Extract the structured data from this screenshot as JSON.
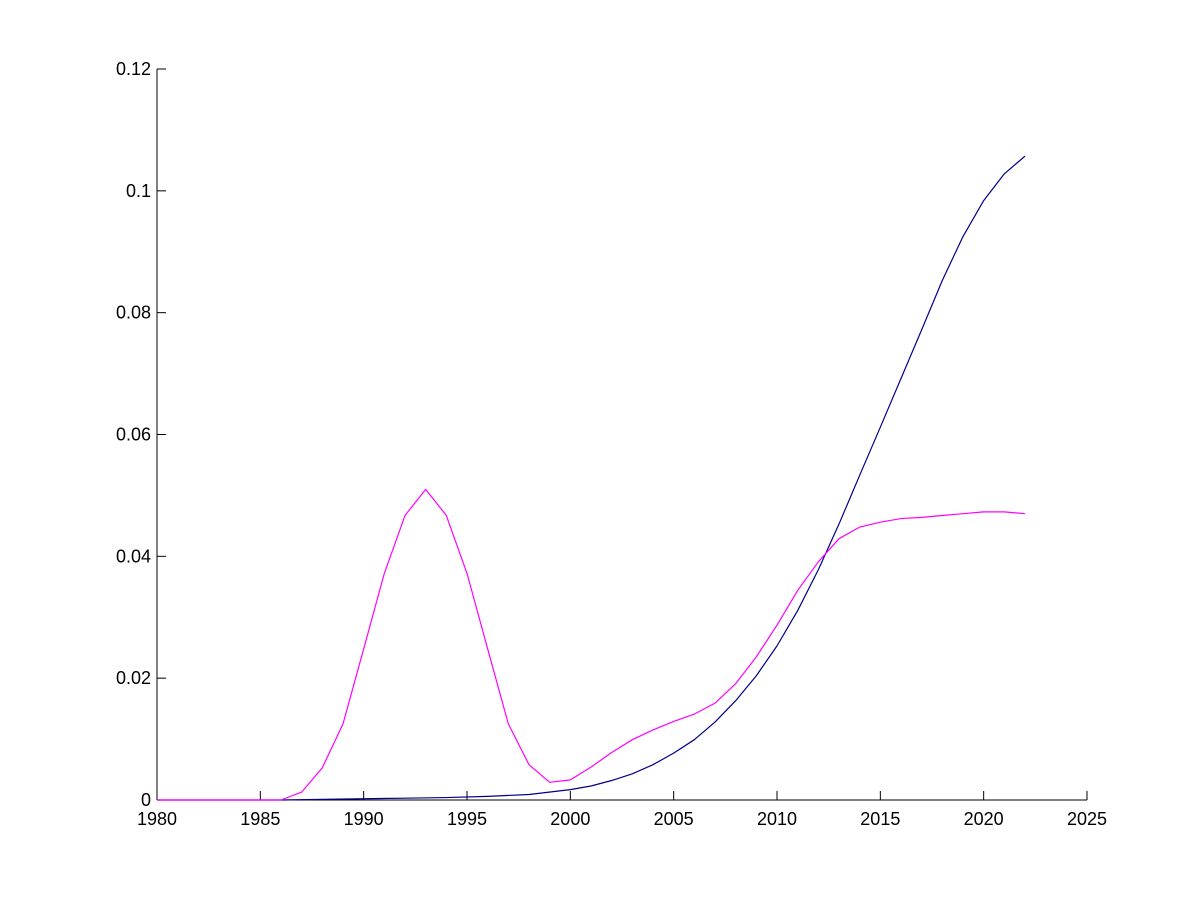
{
  "chart_data": {
    "type": "line",
    "title": "",
    "xlabel": "",
    "ylabel": "",
    "xlim": [
      1980,
      2025
    ],
    "ylim": [
      0,
      0.12
    ],
    "xticks": [
      1980,
      1985,
      1990,
      1995,
      2000,
      2005,
      2010,
      2015,
      2020,
      2025
    ],
    "yticks": [
      0,
      0.02,
      0.04,
      0.06,
      0.08,
      0.1,
      0.12
    ],
    "xtick_labels": [
      "1980",
      "1985",
      "1990",
      "1995",
      "2000",
      "2005",
      "2010",
      "2015",
      "2020",
      "2025"
    ],
    "ytick_labels": [
      "0",
      "0.02",
      "0.04",
      "0.06",
      "0.08",
      "0.1",
      "0.12"
    ],
    "grid": false,
    "legend": "none",
    "series": [
      {
        "color": "#00008b",
        "x": [
          1980,
          1986,
          1988,
          1990,
          1992,
          1994,
          1996,
          1998,
          2000,
          2001,
          2002,
          2003,
          2004,
          2005,
          2006,
          2007,
          2008,
          2009,
          2010,
          2011,
          2012,
          2013,
          2014,
          2015,
          2016,
          2017,
          2018,
          2019,
          2020,
          2021,
          2022
        ],
        "y": [
          0,
          0,
          0.0001,
          0.0002,
          0.0003,
          0.0004,
          0.0006,
          0.0009,
          0.0017,
          0.0023,
          0.0032,
          0.0043,
          0.0058,
          0.0077,
          0.0099,
          0.0128,
          0.0163,
          0.0204,
          0.0253,
          0.0311,
          0.0378,
          0.0453,
          0.0533,
          0.0612,
          0.0692,
          0.0772,
          0.0853,
          0.0925,
          0.0984,
          0.1028,
          0.1057
        ]
      },
      {
        "color": "#ff00ff",
        "x": [
          1980,
          1986,
          1987,
          1988,
          1989,
          1990,
          1991,
          1992,
          1993,
          1994,
          1995,
          1996,
          1997,
          1998,
          1999,
          2000,
          2001,
          2002,
          2003,
          2004,
          2005,
          2006,
          2007,
          2008,
          2009,
          2010,
          2011,
          2012,
          2013,
          2014,
          2015,
          2016,
          2017,
          2018,
          2019,
          2020,
          2021,
          2022
        ],
        "y": [
          0,
          0,
          0.0013,
          0.0053,
          0.0125,
          0.0248,
          0.0372,
          0.0467,
          0.051,
          0.0467,
          0.0372,
          0.0248,
          0.0125,
          0.0058,
          0.0029,
          0.0033,
          0.0054,
          0.0078,
          0.0099,
          0.0115,
          0.0129,
          0.0141,
          0.0159,
          0.0191,
          0.0235,
          0.0287,
          0.0344,
          0.0391,
          0.0429,
          0.0448,
          0.0456,
          0.0462,
          0.0464,
          0.0467,
          0.047,
          0.0473,
          0.0473,
          0.047
        ]
      }
    ]
  }
}
